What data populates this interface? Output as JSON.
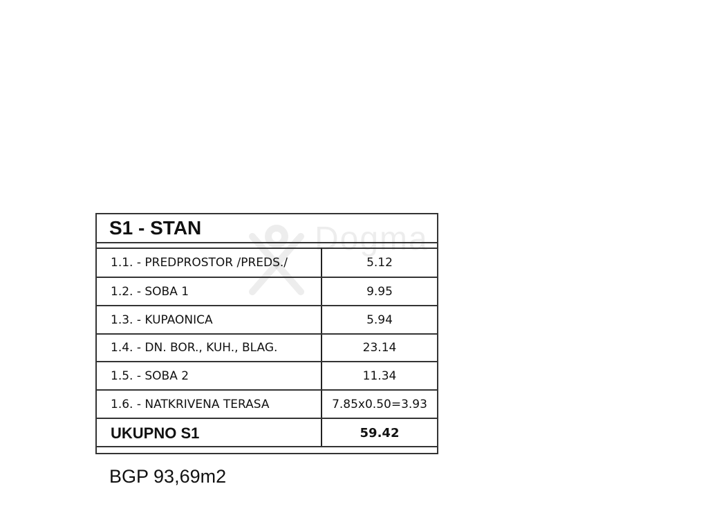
{
  "table": {
    "title": "S1 - STAN",
    "rows": [
      {
        "label": "1.1. - PREDPROSTOR /PREDS./",
        "value": "5.12"
      },
      {
        "label": "1.2. - SOBA 1",
        "value": "9.95"
      },
      {
        "label": "1.3. - KUPAONICA",
        "value": "5.94"
      },
      {
        "label": "1.4. - DN. BOR., KUH., BLAG.",
        "value": "23.14"
      },
      {
        "label": "1.5. - SOBA 2",
        "value": "11.34"
      },
      {
        "label": "1.6. - NATKRIVENA TERASA",
        "value": "7.85x0.50=3.93"
      }
    ],
    "total": {
      "label": "UKUPNO S1",
      "value": "59.42"
    }
  },
  "bgp": "BGP 93,69m2",
  "watermark": "Dogma"
}
